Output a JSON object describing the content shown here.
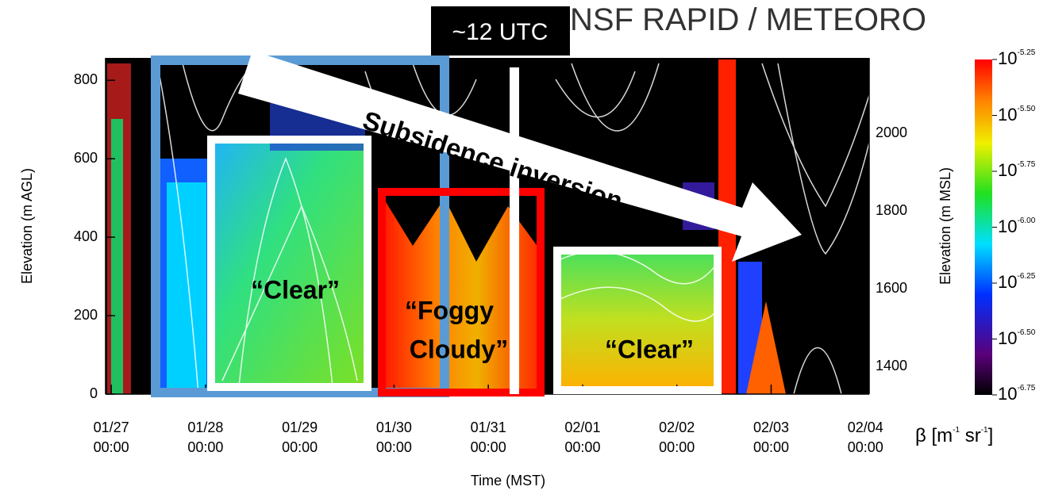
{
  "chart_data": {
    "type": "heatmap",
    "title": "NSF RAPID / METEORO",
    "xlabel": "Time (MST)",
    "ylabel": "Elevation (m AGL)",
    "y2label": "Elevation (m MSL)",
    "xlim": [
      -0.06,
      8.04
    ],
    "xticks": [
      {
        "value": 0,
        "label": "01/27\n00:00"
      },
      {
        "value": 1,
        "label": "01/28\n00:00"
      },
      {
        "value": 2,
        "label": "01/29\n00:00"
      },
      {
        "value": 3,
        "label": "01/30\n00:00"
      },
      {
        "value": 4,
        "label": "01/31\n00:00"
      },
      {
        "value": 5,
        "label": "02/01\n00:00"
      },
      {
        "value": 6,
        "label": "02/02\n00:00"
      },
      {
        "value": 7,
        "label": "02/03\n00:00"
      },
      {
        "value": 8,
        "label": "02/04\n00:00"
      }
    ],
    "ylim": [
      0,
      857
    ],
    "yticks": [
      0,
      200,
      400,
      600,
      800
    ],
    "y2lim": [
      1329,
      2194
    ],
    "y2ticks": [
      1400,
      1600,
      1800,
      2000
    ],
    "colorbar_base": "10",
    "colorbar_lim": [
      -6.75,
      -5.25
    ],
    "colorbar_ticks": [
      -5.25,
      {
        "value": -5.5,
        "label": "-5.50"
      },
      -5.75,
      {
        "value": -6,
        "label": "-6.00"
      },
      -6.25,
      {
        "value": -6.5,
        "label": "-6.50"
      },
      -6.75
    ],
    "colorbar_label": [
      "β [m",
      "-1",
      " sr",
      "-1",
      "]"
    ],
    "annotations": [
      "~12 UTC",
      "Subsidence inversion",
      "“Clear”",
      "“Foggy",
      "Cloudy”",
      "“Clear”"
    ]
  }
}
